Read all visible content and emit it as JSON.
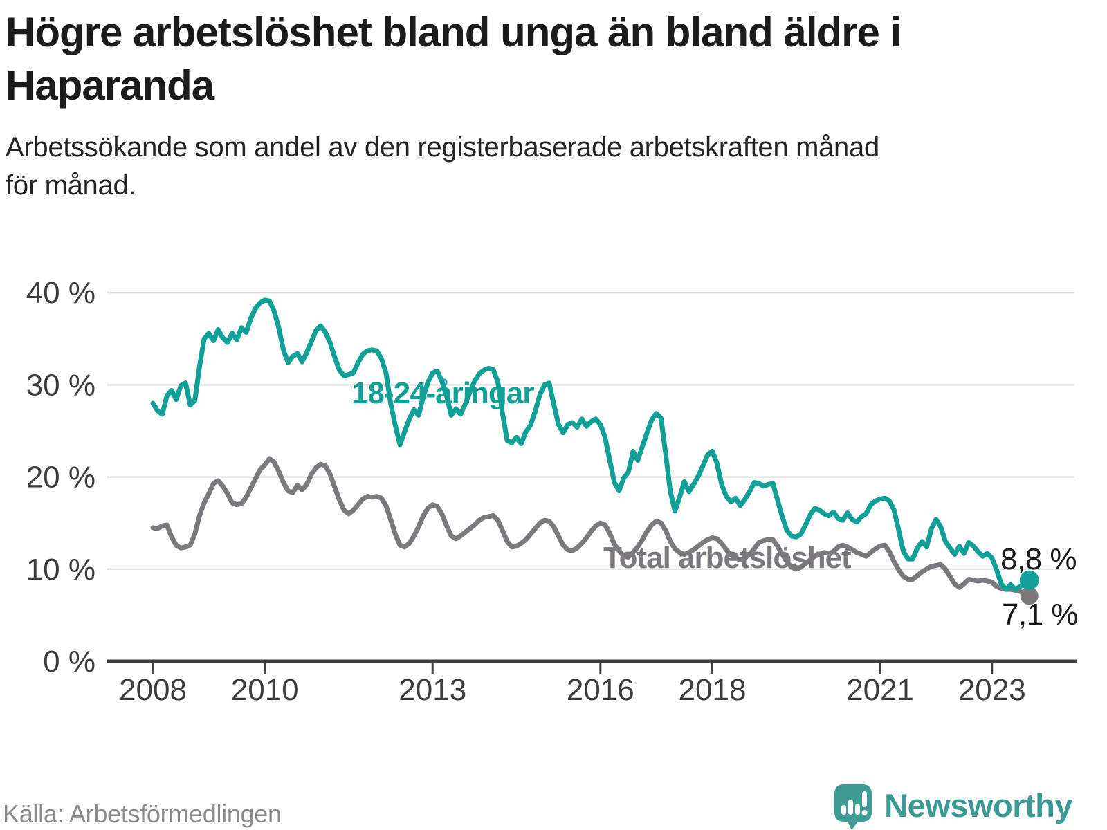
{
  "header": {
    "title_line1": "Högre arbetslöshet bland unga än bland äldre i",
    "title_line2": "Haparanda",
    "subtitle_line1": "Arbetssökande som andel av den registerbaserade arbetskraften månad",
    "subtitle_line2": "för månad."
  },
  "chart": {
    "series_labels": {
      "youth": "18-24-åringar",
      "total": "Total arbetslöshet"
    },
    "end_labels": {
      "youth": "8,8 %",
      "total": "7,1 %"
    },
    "colors": {
      "youth_line": "#11A097",
      "total_line": "#7B797D",
      "grid": "#D9D9D9",
      "axis": "#3F3F3F",
      "tick_text": "#3D3D3D",
      "value_label_text": "#1A1A1A"
    }
  },
  "chart_data": {
    "type": "line",
    "title": "Högre arbetslöshet bland unga än bland äldre i Haparanda",
    "subtitle": "Arbetssökande som andel av den registerbaserade arbetskraften månad för månad.",
    "frequency": "monthly",
    "x_start": "2008-01",
    "x_end": "2023-09",
    "ylim": [
      0,
      42
    ],
    "grid": "horizontal",
    "yticks": [
      0,
      10,
      20,
      30,
      40
    ],
    "ytick_labels": [
      "0 %",
      "10 %",
      "20 %",
      "30 %",
      "40 %"
    ],
    "xticks": [
      2008,
      2010,
      2013,
      2016,
      2018,
      2021,
      2023
    ],
    "xtick_labels": [
      "2008",
      "2010",
      "2013",
      "2016",
      "2018",
      "2021",
      "2023"
    ],
    "end_point_labels": [
      "8,8 %",
      "7,1 %"
    ],
    "series": [
      {
        "name": "18-24-åringar",
        "color": "#11A097",
        "values": [
          28.0,
          27.2,
          26.8,
          28.8,
          29.4,
          28.4,
          29.9,
          30.2,
          27.8,
          28.3,
          32.0,
          35.0,
          35.6,
          34.8,
          36.0,
          35.1,
          34.6,
          35.6,
          34.9,
          36.2,
          35.7,
          37.2,
          38.3,
          38.9,
          39.2,
          39.1,
          38.0,
          36.2,
          33.8,
          32.4,
          33.1,
          33.4,
          32.5,
          33.5,
          34.7,
          35.9,
          36.4,
          35.7,
          34.6,
          33.0,
          31.6,
          31.0,
          31.1,
          31.3,
          32.4,
          33.3,
          33.7,
          33.8,
          33.7,
          32.9,
          31.3,
          28.0,
          25.6,
          23.5,
          24.9,
          26.3,
          27.3,
          26.7,
          28.7,
          30.3,
          31.3,
          31.5,
          30.4,
          28.8,
          26.7,
          27.4,
          26.8,
          27.9,
          29.2,
          30.4,
          31.2,
          31.6,
          31.8,
          31.7,
          30.3,
          26.9,
          24.0,
          23.7,
          24.3,
          23.6,
          24.9,
          25.6,
          27.1,
          28.9,
          30.0,
          30.2,
          27.9,
          25.7,
          24.8,
          25.7,
          25.9,
          25.4,
          26.3,
          25.5,
          26.0,
          26.3,
          25.7,
          24.3,
          21.8,
          19.4,
          18.5,
          19.9,
          20.5,
          22.8,
          21.8,
          23.3,
          24.8,
          26.2,
          26.9,
          26.4,
          22.5,
          18.4,
          16.3,
          17.8,
          19.5,
          18.4,
          19.2,
          20.1,
          21.2,
          22.4,
          22.8,
          21.5,
          19.2,
          17.9,
          17.3,
          17.7,
          16.9,
          17.6,
          18.4,
          19.4,
          19.3,
          19.0,
          19.2,
          19.3,
          17.5,
          15.7,
          14.2,
          13.6,
          13.5,
          13.8,
          14.8,
          15.9,
          16.6,
          16.4,
          16.0,
          15.8,
          16.2,
          15.5,
          15.3,
          16.1,
          15.4,
          15.1,
          15.7,
          16.0,
          17.0,
          17.4,
          17.6,
          17.7,
          17.4,
          16.4,
          14.2,
          11.9,
          11.1,
          11.1,
          12.3,
          13.0,
          12.4,
          14.4,
          15.4,
          14.6,
          13.0,
          12.3,
          11.6,
          12.5,
          11.7,
          12.9,
          12.5,
          11.9,
          11.4,
          11.7,
          11.2,
          9.9,
          8.4,
          7.8,
          8.3,
          7.8,
          8.1,
          8.4,
          8.8
        ]
      },
      {
        "name": "Total arbetslöshet",
        "color": "#7B797D",
        "values": [
          14.5,
          14.4,
          14.7,
          14.8,
          13.5,
          12.6,
          12.3,
          12.4,
          12.6,
          13.8,
          15.8,
          17.2,
          18.2,
          19.3,
          19.6,
          19.0,
          18.2,
          17.2,
          17.0,
          17.1,
          17.8,
          18.8,
          19.8,
          20.8,
          21.3,
          22.0,
          21.6,
          20.6,
          19.4,
          18.5,
          18.3,
          19.1,
          18.6,
          19.2,
          20.3,
          21.0,
          21.4,
          21.2,
          20.3,
          18.9,
          17.5,
          16.4,
          16.0,
          16.4,
          17.0,
          17.6,
          17.9,
          17.8,
          17.9,
          17.7,
          16.9,
          15.4,
          13.8,
          12.6,
          12.4,
          12.8,
          13.6,
          14.6,
          15.8,
          16.6,
          17.0,
          16.8,
          16.0,
          14.7,
          13.6,
          13.3,
          13.6,
          14.0,
          14.4,
          14.8,
          15.3,
          15.6,
          15.7,
          15.8,
          15.3,
          14.2,
          13.0,
          12.4,
          12.5,
          12.8,
          13.2,
          13.8,
          14.4,
          15.0,
          15.3,
          15.2,
          14.6,
          13.6,
          12.6,
          12.1,
          12.0,
          12.3,
          12.8,
          13.4,
          14.1,
          14.7,
          15.0,
          14.8,
          13.9,
          12.7,
          12.0,
          11.4,
          11.3,
          11.8,
          12.4,
          13.2,
          14.1,
          14.8,
          15.2,
          15.0,
          14.2,
          13.0,
          12.2,
          11.8,
          11.6,
          11.8,
          12.1,
          12.5,
          12.9,
          13.2,
          13.4,
          13.3,
          12.8,
          12.1,
          11.5,
          11.2,
          11.0,
          11.2,
          11.6,
          12.2,
          12.9,
          13.1,
          13.2,
          13.2,
          12.5,
          11.6,
          10.8,
          10.2,
          10.0,
          10.2,
          10.6,
          11.0,
          11.4,
          11.6,
          11.8,
          11.7,
          11.9,
          12.4,
          12.6,
          12.4,
          12.1,
          11.8,
          11.6,
          11.4,
          11.8,
          12.2,
          12.5,
          12.6,
          11.9,
          10.8,
          9.9,
          9.2,
          8.9,
          8.9,
          9.3,
          9.7,
          10.0,
          10.3,
          10.4,
          10.5,
          10.0,
          9.2,
          8.4,
          8.0,
          8.4,
          8.9,
          8.8,
          8.7,
          8.8,
          8.7,
          8.6,
          8.1,
          7.9,
          7.8,
          7.8,
          7.7,
          7.6,
          7.3,
          7.1
        ]
      }
    ],
    "legend_position": "inline-labels"
  },
  "footer": {
    "source": "Källa: Arbetsförmedlingen",
    "brand": "Newsworthy"
  }
}
